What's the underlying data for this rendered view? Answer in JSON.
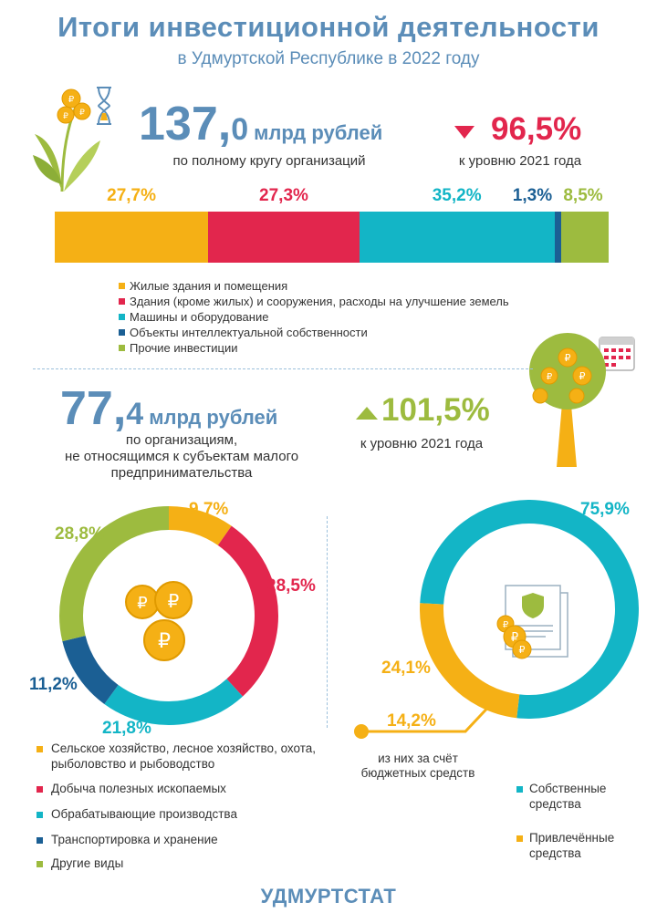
{
  "header": {
    "title": "Итоги инвестиционной деятельности",
    "subtitle": "в Удмуртской Республике в 2022 году"
  },
  "colors": {
    "orange": "#f5b015",
    "red": "#e2264d",
    "teal": "#13b5c6",
    "navy": "#1b5f94",
    "green": "#9dbb3f",
    "blue_text": "#5b8db8"
  },
  "total": {
    "value_main": "137,",
    "value_dec": "0",
    "unit": "млрд рублей",
    "caption": "по полному кругу организаций",
    "change": "96,5%",
    "change_caption": "к уровню 2021 года",
    "change_direction": "down"
  },
  "large_orgs": {
    "value_main": "77,",
    "value_dec": "4",
    "unit": "млрд рублей",
    "caption_lines": [
      "по организациям,",
      "не относящимся к субъектам малого",
      "предпринимательства"
    ],
    "change": "101,5%",
    "change_caption": "к уровню 2021 года",
    "change_direction": "up"
  },
  "chart_data": [
    {
      "type": "bar",
      "orientation": "horizontal-stacked",
      "series": [
        {
          "name": "Жилые здания и помещения",
          "value": 27.7,
          "label": "27,7%",
          "color": "#f5b015"
        },
        {
          "name": "Здания (кроме жилых) и сооружения, расходы на улучшение земель",
          "value": 27.3,
          "label": "27,3%",
          "color": "#e2264d"
        },
        {
          "name": "Машины и оборудование",
          "value": 35.2,
          "label": "35,2%",
          "color": "#13b5c6"
        },
        {
          "name": "Объекты интеллектуальной собственности",
          "value": 1.3,
          "label": "1,3%",
          "color": "#1b5f94"
        },
        {
          "name": "Прочие инвестиции",
          "value": 8.5,
          "label": "8,5%",
          "color": "#9dbb3f"
        }
      ]
    },
    {
      "type": "pie",
      "style": "donut",
      "series": [
        {
          "name": "Сельское хозяйство, лесное хозяйство, охота, рыболовство и рыбоводство",
          "value": 9.7,
          "label": "9,7%",
          "color": "#f5b015"
        },
        {
          "name": "Добыча полезных ископаемых",
          "value": 28.5,
          "label": "28,5%",
          "color": "#e2264d"
        },
        {
          "name": "Обрабатывающие производства",
          "value": 21.8,
          "label": "21,8%",
          "color": "#13b5c6"
        },
        {
          "name": "Транспортировка и хранение",
          "value": 11.2,
          "label": "11,2%",
          "color": "#1b5f94"
        },
        {
          "name": "Другие виды",
          "value": 28.8,
          "label": "28,8%",
          "color": "#9dbb3f"
        }
      ]
    },
    {
      "type": "pie",
      "style": "donut",
      "series": [
        {
          "name": "Собственные средства",
          "value": 75.9,
          "label": "75,9%",
          "color": "#13b5c6"
        },
        {
          "name": "Привлечённые средства",
          "value": 24.1,
          "label": "24,1%",
          "color": "#f5b015"
        }
      ],
      "annotation": {
        "value": 14.2,
        "label": "14,2%",
        "text_lines": [
          "из них за счёт",
          "бюджетных средств"
        ]
      }
    }
  ],
  "legend_bar": [
    "Жилые здания и помещения",
    "Здания (кроме жилых) и сооружения, расходы на улучшение земель",
    "Машины и оборудование",
    "Объекты интеллектуальной собственности",
    "Прочие инвестиции"
  ],
  "legend_sectors": [
    [
      "Сельское хозяйство, лесное хозяйство, охота,",
      "рыболовство и рыбоводство"
    ],
    [
      "Добыча полезных ископаемых"
    ],
    [
      "Обрабатывающие производства"
    ],
    [
      "Транспортировка и хранение"
    ],
    [
      "Другие виды"
    ]
  ],
  "legend_sources": [
    [
      "Собственные",
      "средства"
    ],
    [
      "Привлечённые",
      "средства"
    ]
  ],
  "footer": "УДМУРТСТАТ"
}
